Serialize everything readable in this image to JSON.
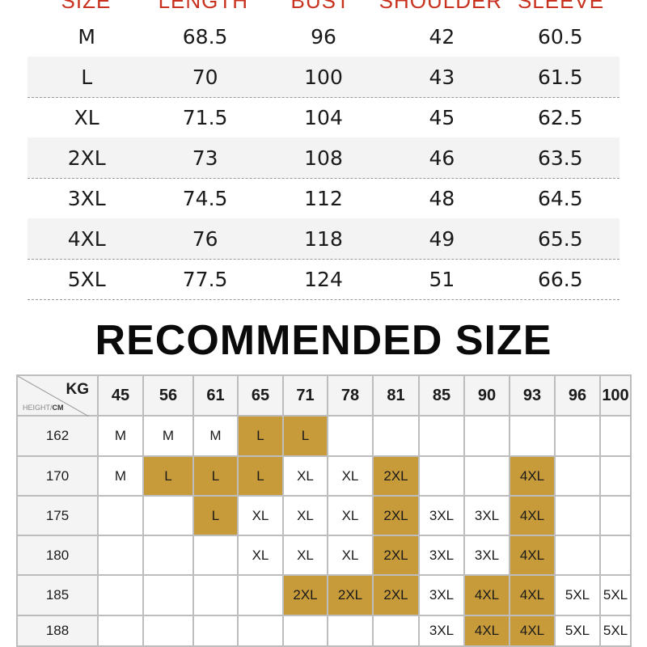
{
  "size_table": {
    "headers": [
      "SIZE",
      "LENGTH",
      "BUST",
      "SHOULDER",
      "SLEEVE"
    ],
    "rows": [
      [
        "M",
        "68.5",
        "96",
        "42",
        "60.5"
      ],
      [
        "L",
        "70",
        "100",
        "43",
        "61.5"
      ],
      [
        "XL",
        "71.5",
        "104",
        "45",
        "62.5"
      ],
      [
        "2XL",
        "73",
        "108",
        "46",
        "63.5"
      ],
      [
        "3XL",
        "74.5",
        "112",
        "48",
        "64.5"
      ],
      [
        "4XL",
        "76",
        "118",
        "49",
        "65.5"
      ],
      [
        "5XL",
        "77.5",
        "124",
        "51",
        "66.5"
      ]
    ]
  },
  "recommended": {
    "title": "RECOMMENDED SIZE",
    "kg_label": "KG",
    "height_label_a": "HEIGHT/",
    "height_label_b": "CM",
    "highlight_color": "#c89b3a",
    "weights": [
      "45",
      "56",
      "61",
      "65",
      "71",
      "78",
      "81",
      "85",
      "90",
      "93",
      "96",
      "100"
    ],
    "rows": [
      {
        "height": "162",
        "cells": [
          {
            "v": "M"
          },
          {
            "v": "M"
          },
          {
            "v": "M"
          },
          {
            "v": "L",
            "hl": true
          },
          {
            "v": "L",
            "hl": true
          },
          {
            "v": ""
          },
          {
            "v": ""
          },
          {
            "v": ""
          },
          {
            "v": ""
          },
          {
            "v": ""
          },
          {
            "v": ""
          },
          {
            "v": ""
          }
        ]
      },
      {
        "height": "170",
        "cells": [
          {
            "v": "M"
          },
          {
            "v": "L",
            "hl": true
          },
          {
            "v": "L",
            "hl": true
          },
          {
            "v": "L",
            "hl": true
          },
          {
            "v": "XL"
          },
          {
            "v": "XL"
          },
          {
            "v": "2XL",
            "hl": true
          },
          {
            "v": ""
          },
          {
            "v": ""
          },
          {
            "v": "4XL",
            "hl": true
          },
          {
            "v": ""
          },
          {
            "v": ""
          }
        ]
      },
      {
        "height": "175",
        "cells": [
          {
            "v": ""
          },
          {
            "v": ""
          },
          {
            "v": "L",
            "hl": true
          },
          {
            "v": "XL"
          },
          {
            "v": "XL"
          },
          {
            "v": "XL"
          },
          {
            "v": "2XL",
            "hl": true
          },
          {
            "v": "3XL"
          },
          {
            "v": "3XL"
          },
          {
            "v": "4XL",
            "hl": true
          },
          {
            "v": ""
          },
          {
            "v": ""
          }
        ]
      },
      {
        "height": "180",
        "cells": [
          {
            "v": ""
          },
          {
            "v": ""
          },
          {
            "v": ""
          },
          {
            "v": "XL"
          },
          {
            "v": "XL"
          },
          {
            "v": "XL"
          },
          {
            "v": "2XL",
            "hl": true
          },
          {
            "v": "3XL"
          },
          {
            "v": "3XL"
          },
          {
            "v": "4XL",
            "hl": true
          },
          {
            "v": ""
          },
          {
            "v": ""
          }
        ]
      },
      {
        "height": "185",
        "cells": [
          {
            "v": ""
          },
          {
            "v": ""
          },
          {
            "v": ""
          },
          {
            "v": ""
          },
          {
            "v": "2XL",
            "hl": true
          },
          {
            "v": "2XL",
            "hl": true
          },
          {
            "v": "2XL",
            "hl": true
          },
          {
            "v": "3XL"
          },
          {
            "v": "4XL",
            "hl": true
          },
          {
            "v": "4XL",
            "hl": true
          },
          {
            "v": "5XL"
          },
          {
            "v": "5XL"
          }
        ]
      },
      {
        "height": "188",
        "cells": [
          {
            "v": ""
          },
          {
            "v": ""
          },
          {
            "v": ""
          },
          {
            "v": ""
          },
          {
            "v": ""
          },
          {
            "v": ""
          },
          {
            "v": ""
          },
          {
            "v": "3XL"
          },
          {
            "v": "4XL",
            "hl": true
          },
          {
            "v": "4XL",
            "hl": true
          },
          {
            "v": "5XL"
          },
          {
            "v": "5XL"
          }
        ]
      }
    ]
  }
}
